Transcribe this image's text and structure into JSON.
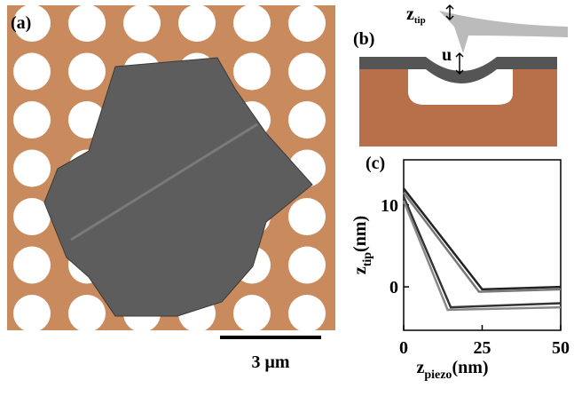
{
  "panel_a": {
    "label": "(a)",
    "scale_bar": "3 μm"
  },
  "panel_b": {
    "label": "(b)",
    "tip_label": "z",
    "tip_sub": "tip",
    "u_label": "u"
  },
  "chart_data": {
    "type": "line",
    "label": "(c)",
    "x_label": "z",
    "x_label_sub": "piezo",
    "x_unit": "(nm)",
    "y_label": "z",
    "y_label_sub": "tip",
    "y_unit": "(nm)",
    "xlim": [
      0,
      50
    ],
    "ylim": [
      -5.3,
      15.5
    ],
    "xticks": [
      0,
      25,
      50
    ],
    "yticks": [
      0,
      10
    ],
    "series": [
      {
        "color": "#222222",
        "x": [
          0,
          25,
          50
        ],
        "values": [
          12,
          -0.3,
          0
        ]
      },
      {
        "color": "#777777",
        "x": [
          0,
          24,
          50
        ],
        "values": [
          11.5,
          -0.6,
          -0.3
        ]
      },
      {
        "color": "#333333",
        "x": [
          0,
          15,
          50
        ],
        "values": [
          11,
          -2.5,
          -2
        ]
      },
      {
        "color": "#888888",
        "x": [
          0,
          14,
          50
        ],
        "values": [
          10.5,
          -2.8,
          -2.5
        ]
      }
    ]
  }
}
